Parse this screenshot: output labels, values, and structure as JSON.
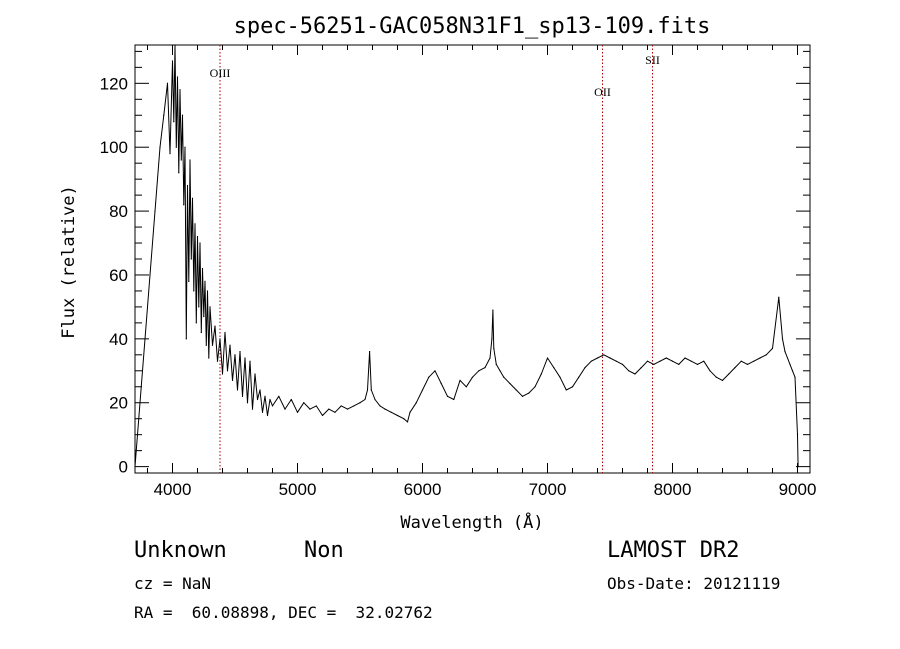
{
  "chart_data": {
    "type": "line",
    "title": "spec-56251-GAC058N31F1_sp13-109.fits",
    "xlabel": "Wavelength (Å)",
    "ylabel": "Flux (relative)",
    "xlim": [
      3700,
      9100
    ],
    "ylim": [
      -2,
      132
    ],
    "xticks": [
      4000,
      5000,
      6000,
      7000,
      8000,
      9000
    ],
    "yticks": [
      0,
      20,
      40,
      60,
      80,
      100,
      120
    ],
    "grid": false,
    "series": [
      {
        "x": [
          3700,
          3740,
          3780,
          3820,
          3860,
          3900,
          3930,
          3960,
          3980,
          4000,
          4010,
          4020,
          4030,
          4040,
          4050,
          4060,
          4070,
          4080,
          4090,
          4100,
          4110,
          4120,
          4130,
          4140,
          4150,
          4160,
          4170,
          4180,
          4190,
          4200,
          4210,
          4220,
          4230,
          4240,
          4250,
          4260,
          4270,
          4280,
          4290,
          4300,
          4320,
          4340,
          4360,
          4380,
          4400,
          4420,
          4440,
          4460,
          4480,
          4500,
          4520,
          4540,
          4560,
          4580,
          4600,
          4620,
          4640,
          4660,
          4680,
          4700,
          4720,
          4740,
          4760,
          4780,
          4800,
          4850,
          4900,
          4950,
          5000,
          5050,
          5100,
          5150,
          5200,
          5250,
          5300,
          5350,
          5400,
          5450,
          5500,
          5540,
          5560,
          5577,
          5590,
          5620,
          5660,
          5700,
          5750,
          5800,
          5850,
          5880,
          5900,
          5950,
          6000,
          6050,
          6100,
          6150,
          6200,
          6250,
          6300,
          6350,
          6400,
          6450,
          6500,
          6540,
          6555,
          6563,
          6570,
          6590,
          6620,
          6650,
          6700,
          6750,
          6800,
          6850,
          6900,
          6950,
          7000,
          7050,
          7100,
          7150,
          7200,
          7250,
          7300,
          7350,
          7400,
          7450,
          7500,
          7550,
          7600,
          7650,
          7700,
          7750,
          7800,
          7850,
          7900,
          7950,
          8000,
          8050,
          8100,
          8150,
          8200,
          8250,
          8300,
          8350,
          8400,
          8450,
          8500,
          8550,
          8600,
          8650,
          8700,
          8750,
          8800,
          8850,
          8880,
          8900,
          8920,
          8940,
          8960,
          8980,
          9000,
          9005
        ],
        "y": [
          0,
          20,
          40,
          60,
          80,
          100,
          110,
          120,
          98,
          127,
          108,
          132,
          100,
          122,
          92,
          118,
          96,
          110,
          82,
          100,
          40,
          88,
          58,
          96,
          65,
          84,
          55,
          76,
          45,
          72,
          50,
          70,
          42,
          62,
          47,
          58,
          38,
          55,
          34,
          50,
          38,
          44,
          33,
          40,
          29,
          42,
          30,
          38,
          27,
          35,
          24,
          36,
          22,
          34,
          20,
          33,
          18,
          29,
          21,
          24,
          17,
          22,
          16,
          21,
          19,
          22,
          18,
          21,
          17,
          20,
          18,
          19,
          16,
          18,
          17,
          19,
          18,
          19,
          20,
          21,
          24,
          36,
          24,
          21,
          19,
          18,
          17,
          16,
          15,
          14,
          17,
          20,
          24,
          28,
          30,
          26,
          22,
          21,
          27,
          25,
          28,
          30,
          31,
          34,
          40,
          49,
          37,
          32,
          30,
          28,
          26,
          24,
          22,
          23,
          25,
          29,
          34,
          31,
          28,
          24,
          25,
          28,
          31,
          33,
          34,
          35,
          34,
          33,
          32,
          30,
          29,
          31,
          33,
          32,
          33,
          34,
          33,
          32,
          34,
          33,
          32,
          33,
          30,
          28,
          27,
          29,
          31,
          33,
          32,
          33,
          34,
          35,
          37,
          53,
          40,
          36,
          34,
          32,
          30,
          28,
          10,
          0
        ]
      }
    ],
    "annotations": [
      {
        "label": "OIII",
        "x": 4380,
        "label_y": 122
      },
      {
        "label": "OII",
        "x": 7440,
        "label_y": 116
      },
      {
        "label": "SII",
        "x": 7840,
        "label_y": 126
      }
    ]
  },
  "info": {
    "class": "Unknown",
    "subclass": "Non",
    "survey": "LAMOST DR2",
    "cz": "cz = NaN",
    "obs_date": "Obs-Date: 20121119",
    "radec": "RA =  60.08898, DEC =  32.02762"
  }
}
